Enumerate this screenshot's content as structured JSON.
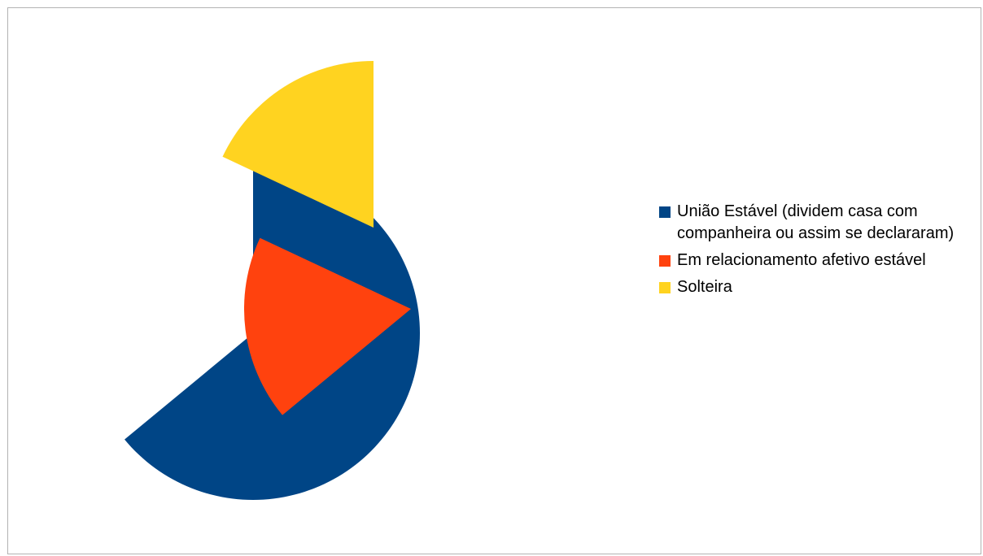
{
  "chart_data": {
    "type": "pie",
    "title": "",
    "exploded": true,
    "slices": [
      {
        "label": "União Estável (dividem casa com companheira ou assim se declararam)",
        "value": 64,
        "color": "#004586"
      },
      {
        "label": "Em relacionamento afetivo estável",
        "value": 18,
        "color": "#ff420e"
      },
      {
        "label": "Solteira",
        "value": 18,
        "color": "#ffd320"
      }
    ],
    "legend_position": "right"
  }
}
